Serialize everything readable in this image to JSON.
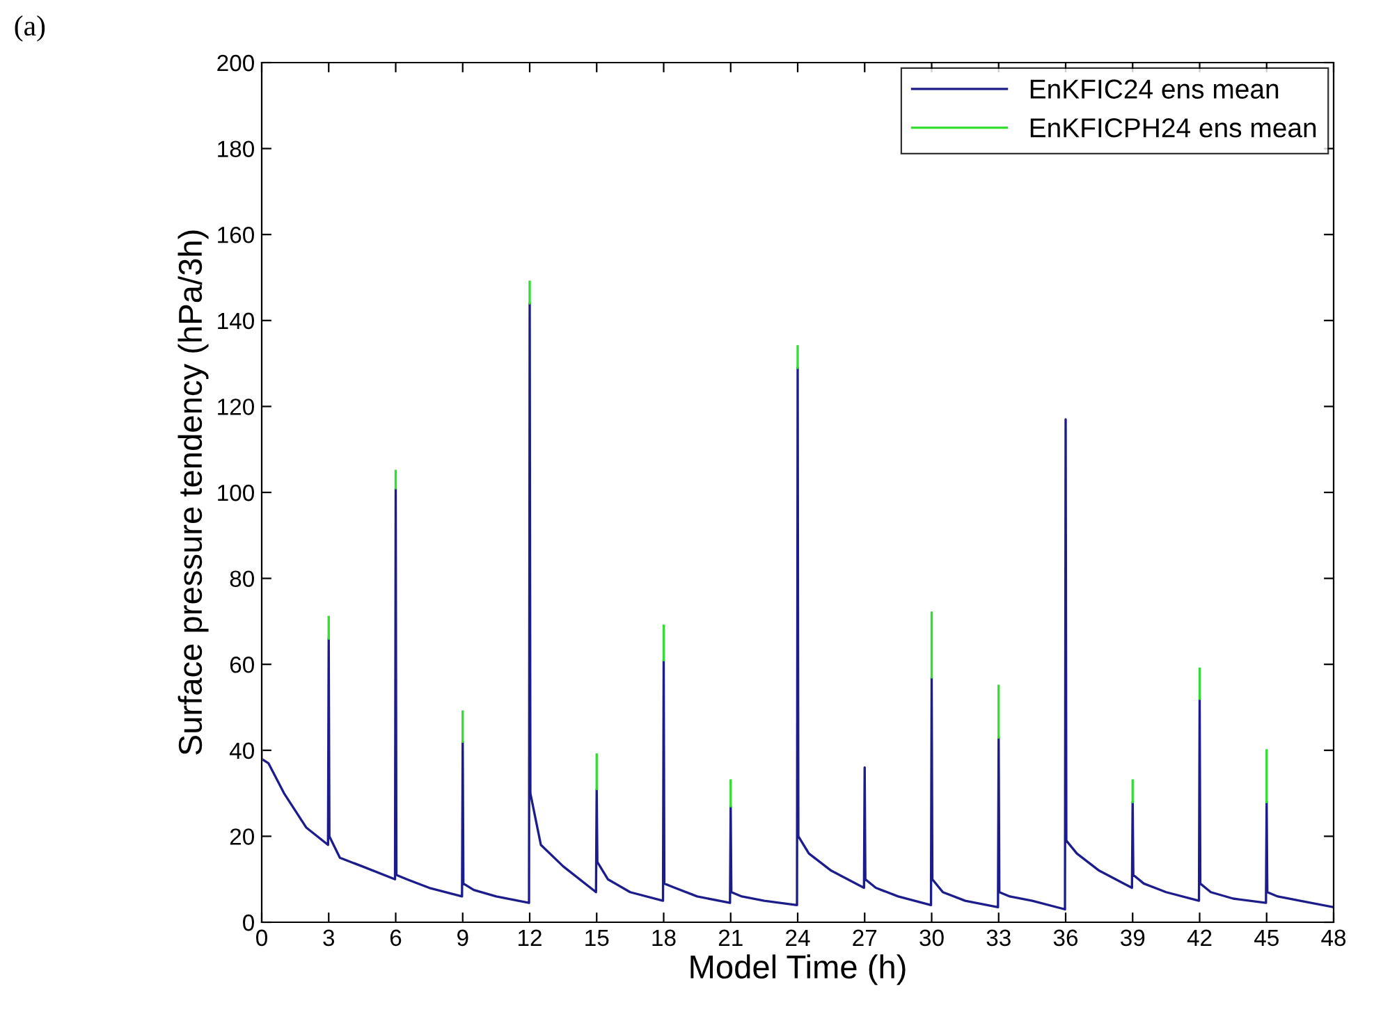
{
  "chart_data": {
    "type": "line",
    "xlabel": "Model Time (h)",
    "ylabel": "Surface pressure tendency (hPa/3h)",
    "annotations": [
      "(a)"
    ],
    "x": [
      0,
      0.3,
      1,
      2,
      2.97,
      3,
      3.03,
      3.5,
      4.5,
      5.97,
      6,
      6.03,
      6.5,
      7.5,
      8.97,
      9,
      9.03,
      9.5,
      10.5,
      11.97,
      12,
      12.03,
      12.5,
      13.5,
      14.97,
      15,
      15.03,
      15.5,
      16.5,
      17.97,
      18,
      18.03,
      18.5,
      19.5,
      20.97,
      21,
      21.03,
      21.5,
      22.5,
      23.97,
      24,
      24.03,
      24.5,
      25.5,
      26.97,
      27,
      27.03,
      27.5,
      28.5,
      29.97,
      30,
      30.03,
      30.5,
      31.5,
      32.97,
      33,
      33.03,
      33.5,
      34.5,
      35.97,
      36,
      36.03,
      36.5,
      37.5,
      38.97,
      39,
      39.03,
      39.5,
      40.5,
      41.97,
      42,
      42.03,
      42.5,
      43.5,
      44.97,
      45,
      45.03,
      45.5,
      46.5,
      48
    ],
    "series": [
      {
        "name": "EnKFIC24 ens mean",
        "color": "#1c1c8c",
        "values": [
          38,
          37,
          30,
          22,
          18,
          66,
          20,
          15,
          13,
          10,
          101,
          11,
          10,
          8,
          6,
          42,
          9,
          7.5,
          6,
          4.5,
          144,
          30,
          18,
          13,
          7,
          31,
          14,
          10,
          7,
          5,
          61,
          9,
          8,
          6,
          4.5,
          27,
          7,
          6,
          5,
          4,
          129,
          20,
          16,
          12,
          8,
          36,
          10,
          8,
          6,
          4,
          57,
          10,
          7,
          5,
          3.5,
          43,
          7,
          6,
          5,
          3,
          117,
          19,
          16,
          12,
          8,
          28,
          11,
          9,
          7,
          5,
          52,
          9,
          7,
          5.5,
          4.5,
          28,
          7,
          6,
          5,
          3.5
        ]
      },
      {
        "name": "EnKFICPH24 ens mean",
        "color": "#33dd33",
        "x": [
          0,
          0,
          1.5,
          3,
          3,
          4.5,
          6,
          6,
          7.5,
          9,
          9,
          10.5,
          12,
          12,
          13.5,
          15,
          15,
          16.5,
          18,
          18,
          19.5,
          21,
          21,
          22.5,
          24,
          24,
          25.5,
          30,
          30,
          31.5,
          33,
          33,
          34.5,
          39,
          39,
          40.5,
          42,
          42,
          43.5,
          45,
          45
        ],
        "values": [
          38,
          40,
          null,
          66,
          71,
          null,
          101,
          105,
          null,
          42,
          49,
          null,
          144,
          149,
          null,
          31,
          39,
          null,
          61,
          69,
          null,
          27,
          33,
          null,
          129,
          134,
          null,
          57,
          72,
          null,
          43,
          55,
          null,
          28,
          33,
          null,
          52,
          59,
          null,
          28,
          40
        ]
      }
    ],
    "xlim": [
      0,
      48
    ],
    "xticks": [
      0,
      3,
      6,
      9,
      12,
      15,
      18,
      21,
      24,
      27,
      30,
      33,
      36,
      39,
      42,
      45,
      48
    ],
    "ylim": [
      0,
      200
    ],
    "yticks": [
      0,
      20,
      40,
      60,
      80,
      100,
      120,
      140,
      160,
      180,
      200
    ],
    "grid": false,
    "legend": "top right",
    "marker": "none",
    "line_style": "solid"
  }
}
